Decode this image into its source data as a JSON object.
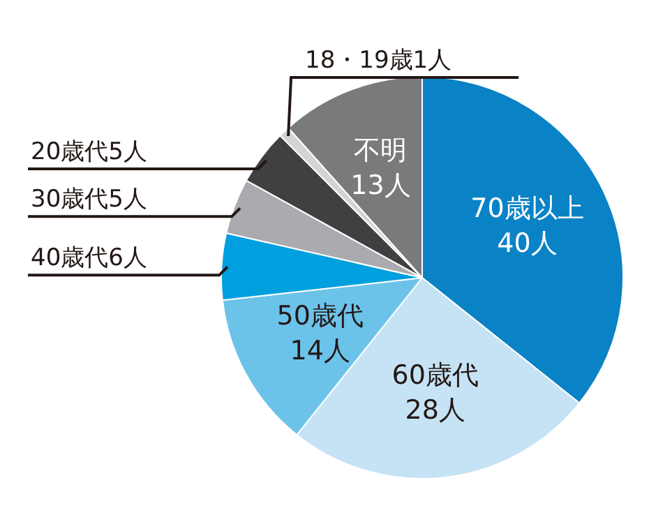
{
  "chart_data": {
    "type": "pie",
    "categories": [
      "70歳以上",
      "60歳代",
      "50歳代",
      "40歳代",
      "30歳代",
      "20歳代",
      "18・19歳",
      "不明"
    ],
    "values": [
      40,
      28,
      14,
      6,
      5,
      5,
      1,
      13
    ],
    "value_labels": [
      "40人",
      "28人",
      "14人",
      "6人",
      "5人",
      "5人",
      "1人",
      "13人"
    ],
    "colors": [
      "#0a82c6",
      "#c6e3f5",
      "#6cc3ea",
      "#009fde",
      "#a9abae",
      "#404042",
      "#d4d4d4",
      "#7a7a7c"
    ],
    "legend": false
  }
}
